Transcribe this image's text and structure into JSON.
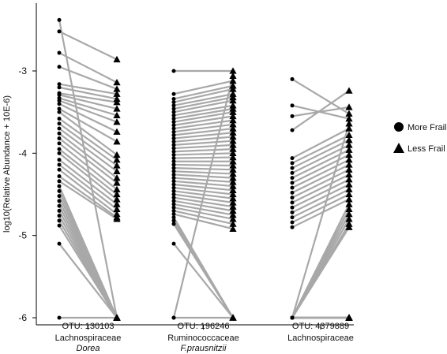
{
  "chart_data": {
    "type": "scatter",
    "title": "",
    "ylabel": "log10(Relative Abundance + 10E-6)",
    "ylim": [
      -6.05,
      -2.35
    ],
    "yticks": [
      -3,
      -4,
      -5,
      -6
    ],
    "ytick_labels": [
      "-3",
      "-4",
      "-5",
      "-6"
    ],
    "legend": {
      "position": "right",
      "entries": [
        {
          "name": "More Frail",
          "marker": "circle"
        },
        {
          "name": "Less Frail",
          "marker": "triangle"
        }
      ]
    },
    "line_color": "#a8a8a8",
    "marker_color": "#000000",
    "groups": [
      {
        "label": "Lachnospiraceae",
        "sublabel": "Dorea",
        "otu": "OTU: 130103",
        "more_frail": [
          -2.38,
          -2.52,
          -2.78,
          -2.95,
          -3.16,
          -3.2,
          -3.27,
          -3.29,
          -3.33,
          -3.36,
          -3.4,
          -3.46,
          -3.5,
          -3.58,
          -3.64,
          -3.7,
          -3.76,
          -3.82,
          -3.88,
          -3.95,
          -4.0,
          -4.08,
          -4.14,
          -4.2,
          -4.28,
          -4.34,
          -4.4,
          -4.46,
          -4.52,
          -4.58,
          -4.64,
          -4.7,
          -4.76,
          -4.82,
          -4.88,
          -5.1,
          -6.0
        ],
        "less_frail": [
          -2.86,
          -3.14,
          -3.22,
          -3.28,
          -3.34,
          -3.38,
          -3.46,
          -3.54,
          -3.62,
          -3.74,
          -3.86,
          -4.02,
          -4.08,
          -4.15,
          -4.22,
          -4.3,
          -4.36,
          -4.44,
          -4.5,
          -4.56,
          -4.62,
          -4.68,
          -4.74,
          -4.78,
          -4.8,
          -6.0,
          -6.0,
          -6.0,
          -6.0,
          -6.0,
          -6.0,
          -6.0,
          -6.0,
          -6.0,
          -6.0,
          -6.0,
          -6.0
        ]
      },
      {
        "label": "Ruminococcaceae",
        "sublabel": "F.prausnitzii",
        "otu": "OTU: 196246",
        "more_frail": [
          -3.0,
          -3.28,
          -3.34,
          -3.38,
          -3.42,
          -3.46,
          -3.5,
          -3.54,
          -3.58,
          -3.62,
          -3.66,
          -3.7,
          -3.74,
          -3.78,
          -3.82,
          -3.86,
          -3.9,
          -3.94,
          -3.98,
          -4.02,
          -4.06,
          -4.1,
          -4.14,
          -4.18,
          -4.22,
          -4.26,
          -4.3,
          -4.34,
          -4.38,
          -4.42,
          -4.46,
          -4.5,
          -4.54,
          -4.58,
          -4.62,
          -4.66,
          -4.7,
          -4.74,
          -4.78,
          -4.82,
          -4.86,
          -5.1,
          -6.0,
          -6.0
        ],
        "less_frail": [
          -3.0,
          -3.06,
          -3.12,
          -3.18,
          -3.22,
          -3.28,
          -3.32,
          -3.36,
          -3.42,
          -3.46,
          -3.5,
          -3.55,
          -3.6,
          -3.65,
          -3.7,
          -3.75,
          -3.8,
          -3.85,
          -3.9,
          -3.95,
          -4.0,
          -4.05,
          -4.1,
          -4.15,
          -4.2,
          -4.25,
          -4.3,
          -4.35,
          -4.4,
          -4.45,
          -4.5,
          -4.55,
          -4.6,
          -4.65,
          -4.7,
          -4.75,
          -4.8,
          -4.86,
          -4.92,
          -6.0,
          -6.0,
          -6.0,
          -6.0,
          -6.0
        ]
      },
      {
        "label": "Lachnospiraceae",
        "sublabel": "",
        "otu": "OTU: 4379889",
        "more_frail": [
          -3.1,
          -3.42,
          -3.55,
          -3.72,
          -4.06,
          -4.12,
          -4.18,
          -4.24,
          -4.3,
          -4.36,
          -4.42,
          -4.48,
          -4.54,
          -4.6,
          -4.66,
          -4.72,
          -4.78,
          -4.84,
          -4.9,
          -6.0,
          -6.0,
          -6.0,
          -6.0,
          -6.0,
          -6.0,
          -6.0,
          -6.0,
          -6.0,
          -6.0,
          -6.0,
          -6.0,
          -6.0,
          -6.0,
          -6.0,
          -6.0,
          -6.0,
          -6.0
        ],
        "less_frail": [
          -3.24,
          -3.44,
          -3.52,
          -3.58,
          -3.64,
          -3.7,
          -3.78,
          -3.84,
          -3.9,
          -3.96,
          -4.02,
          -4.08,
          -4.14,
          -4.2,
          -4.26,
          -4.32,
          -4.38,
          -4.44,
          -4.5,
          -4.56,
          -4.62,
          -4.68,
          -4.74,
          -4.8,
          -4.86,
          -4.9,
          -6.0,
          -6.0,
          -6.0,
          -6.0,
          -6.0,
          -6.0,
          -6.0,
          -6.0,
          -6.0,
          -6.0,
          -6.0
        ]
      }
    ]
  }
}
